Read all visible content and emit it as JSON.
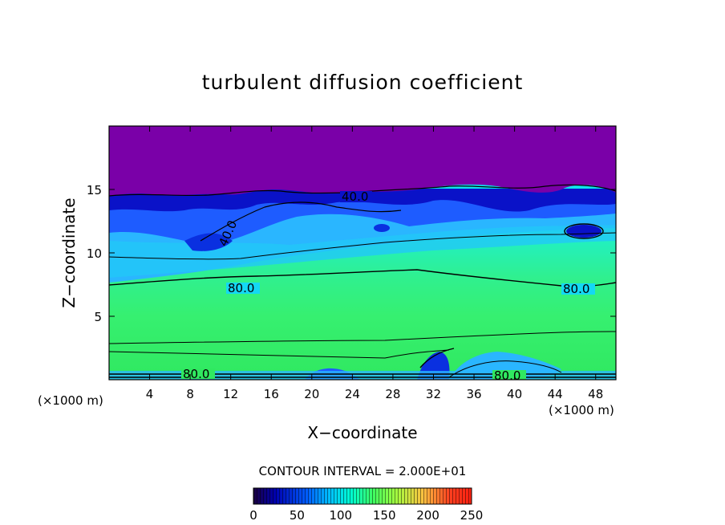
{
  "chart_data": {
    "type": "heatmap",
    "title": "turbulent diffusion coefficient",
    "xlabel": "X−coordinate",
    "ylabel": "Z−coordinate",
    "x_unit": "(×1000 m)",
    "x_unit_right": "(×1000 m)",
    "xlim": [
      0,
      50
    ],
    "ylim": [
      0,
      20
    ],
    "x_ticks": [
      4,
      8,
      12,
      16,
      20,
      24,
      28,
      32,
      36,
      40,
      44,
      48
    ],
    "y_ticks": [
      5,
      10,
      15
    ],
    "contour_interval_label": "CONTOUR INTERVAL = 2.000E+01",
    "contour_interval": 20,
    "contour_labels": [
      "40.0",
      "40.0",
      "80.0",
      "80.0",
      "80.0",
      "80.0"
    ],
    "colorbar": {
      "min": 0,
      "max": 250,
      "ticks": [
        0,
        50,
        100,
        150,
        200,
        250
      ],
      "colors": [
        "#1a0040",
        "#0000b0",
        "#0060ff",
        "#00c0ff",
        "#00ffd0",
        "#40ff60",
        "#a0ff40",
        "#ffc040",
        "#ff4020",
        "#ff2010"
      ]
    },
    "grid": false,
    "colors": {
      "top_layer": "#7a00a8",
      "dark_blue": "#0a12c8",
      "blue": "#1e5cff",
      "light_blue": "#38a8ff",
      "cyan": "#10e6f0",
      "aqua_green": "#28f0b0",
      "green": "#38f070"
    }
  }
}
